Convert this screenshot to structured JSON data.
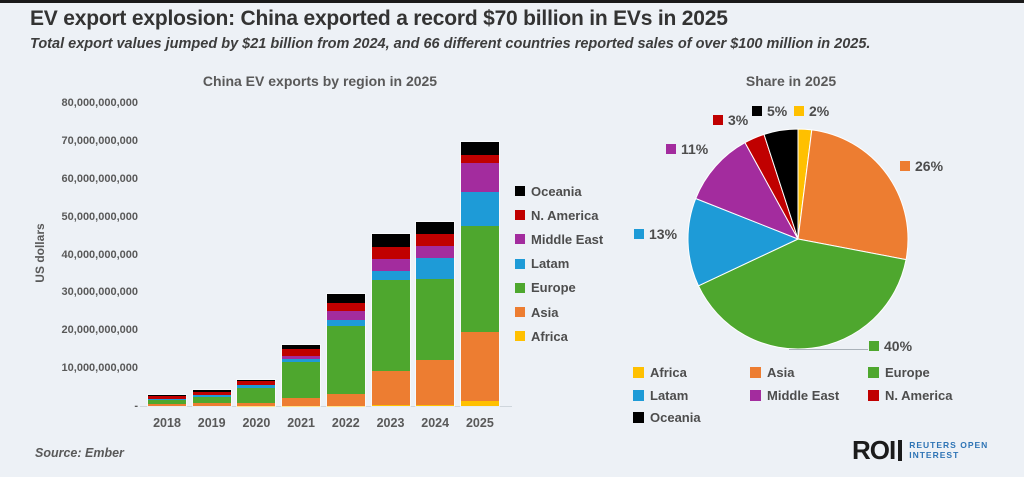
{
  "header": {
    "title": "EV export explosion: China exported a record $70 billion in EVs in 2025",
    "subtitle": "Total export values jumped by $21 billion from 2024, and 66 different countries reported sales of over $100 million in 2025."
  },
  "colors": {
    "background": "#EDF1F6",
    "regions": {
      "Africa": "#FFC000",
      "Asia": "#ED7D31",
      "Europe": "#4EA72E",
      "Latam": "#1E9BD7",
      "Middle East": "#A32C9E",
      "N. America": "#C00000",
      "Oceania": "#000000"
    }
  },
  "chart_data": [
    {
      "type": "bar",
      "stacked": true,
      "title": "China EV exports by region in 2025",
      "xlabel": "",
      "ylabel": "US dollars",
      "ylim": [
        0,
        80000000000
      ],
      "grid": false,
      "legend_position": "right",
      "categories": [
        "2018",
        "2019",
        "2020",
        "2021",
        "2022",
        "2023",
        "2024",
        "2025"
      ],
      "y_tick_labels": [
        "80,000,000,000",
        "70,000,000,000",
        "60,000,000,000",
        "50,000,000,000",
        "40,000,000,000",
        "30,000,000,000",
        "20,000,000,000",
        "10,000,000,000",
        "-"
      ],
      "series": [
        {
          "name": "Africa",
          "values": [
            20000000,
            20000000,
            50000000,
            50000000,
            100000000,
            300000000,
            400000000,
            1400000000
          ]
        },
        {
          "name": "Asia",
          "values": [
            400000000,
            800000000,
            750000000,
            2000000000,
            3100000000,
            9000000000,
            11800000000,
            18200000000
          ]
        },
        {
          "name": "Europe",
          "values": [
            1300000000,
            1600000000,
            3900000000,
            9500000000,
            17900000000,
            24000000000,
            21300000000,
            27900000000
          ]
        },
        {
          "name": "Latam",
          "values": [
            200000000,
            450000000,
            800000000,
            800000000,
            1500000000,
            2400000000,
            5700000000,
            9100000000
          ]
        },
        {
          "name": "Middle East",
          "values": [
            50000000,
            50000000,
            100000000,
            800000000,
            2400000000,
            3200000000,
            3100000000,
            7600000000
          ]
        },
        {
          "name": "N. America",
          "values": [
            700000000,
            850000000,
            1000000000,
            1800000000,
            2100000000,
            3200000000,
            3100000000,
            2100000000
          ]
        },
        {
          "name": "Oceania",
          "values": [
            300000000,
            400000000,
            300000000,
            1300000000,
            2400000000,
            3300000000,
            3100000000,
            3500000000
          ]
        }
      ],
      "legend_top_to_bottom": [
        "Oceania",
        "N. America",
        "Middle East",
        "Latam",
        "Europe",
        "Asia",
        "Africa"
      ]
    },
    {
      "type": "pie",
      "title": "Share in 2025",
      "start_angle_deg": 0,
      "direction": "clockwise",
      "slices": [
        {
          "label": "Africa",
          "pct": 2
        },
        {
          "label": "Asia",
          "pct": 26
        },
        {
          "label": "Europe",
          "pct": 40
        },
        {
          "label": "Latam",
          "pct": 13
        },
        {
          "label": "Middle East",
          "pct": 11
        },
        {
          "label": "N. America",
          "pct": 3
        },
        {
          "label": "Oceania",
          "pct": 5
        }
      ],
      "legend_order": [
        "Africa",
        "Asia",
        "Europe",
        "Latam",
        "Middle East",
        "N. America",
        "Oceania"
      ]
    }
  ],
  "footer": {
    "source": "Source:  Ember",
    "logo": {
      "mark": "ROI",
      "line1": "REUTERS OPEN",
      "line2": "INTEREST"
    }
  }
}
